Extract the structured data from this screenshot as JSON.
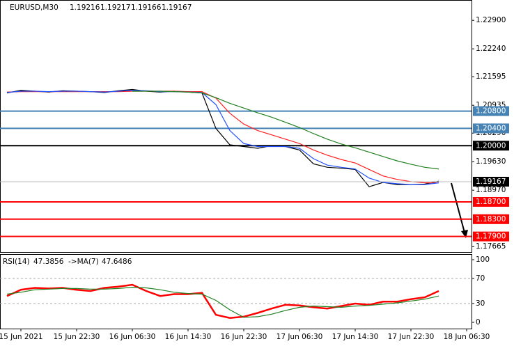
{
  "chart_data": [
    {
      "type": "line",
      "title": "EURUSD,M30",
      "ohlc": [
        1.19216,
        1.19217,
        1.19166,
        1.19167
      ],
      "categories": [
        null,
        "15 Jun 2021",
        null,
        null,
        null,
        "15 Jun 22:30",
        null,
        null,
        null,
        "16 Jun 06:30",
        null,
        null,
        null,
        "16 Jun 14:30",
        null,
        null,
        null,
        "16 Jun 22:30",
        null,
        null,
        null,
        "17 Jun 06:30",
        null,
        null,
        null,
        "17 Jun 14:30",
        null,
        null,
        null,
        "17 Jun 22:30",
        null,
        null,
        null,
        "18 Jun 06:30"
      ],
      "series": [
        {
          "color": "#000000",
          "values": [
            1.2122,
            1.2128,
            1.2126,
            1.2124,
            1.2127,
            1.2126,
            1.2125,
            1.2123,
            1.2127,
            1.213,
            1.2126,
            1.2124,
            1.2126,
            1.2124,
            1.2122,
            1.204,
            1.2002,
            1.1998,
            1.1994,
            1.2,
            1.1998,
            1.199,
            1.1958,
            1.195,
            1.1948,
            1.1945,
            1.1905,
            1.1915,
            1.191,
            1.191,
            1.1911,
            1.1918,
            null,
            null
          ]
        },
        {
          "color": "#ff2020",
          "values": [
            1.2124,
            1.2125,
            1.2125,
            1.2125,
            1.2125,
            1.2125,
            1.2125,
            1.2125,
            1.2125,
            1.2126,
            1.2126,
            1.2126,
            1.2126,
            1.2125,
            1.2125,
            1.211,
            1.2075,
            1.205,
            1.2035,
            1.2025,
            1.2015,
            1.2005,
            1.199,
            1.1978,
            1.1968,
            1.196,
            1.1945,
            1.193,
            1.1922,
            1.1917,
            1.1914,
            1.1914,
            null,
            null
          ]
        },
        {
          "color": "#2050ff",
          "values": [
            1.2123,
            1.2126,
            1.2126,
            1.2125,
            1.2126,
            1.2126,
            1.2125,
            1.2124,
            1.2126,
            1.2128,
            1.2127,
            1.2125,
            1.2125,
            1.2124,
            1.2123,
            1.2095,
            1.2035,
            1.2005,
            1.1998,
            1.1998,
            1.1998,
            1.1994,
            1.197,
            1.1955,
            1.195,
            1.1946,
            1.1925,
            1.1915,
            1.1912,
            1.191,
            1.191,
            1.1914,
            null,
            null
          ]
        },
        {
          "color": "#208020",
          "values": [
            null,
            null,
            null,
            null,
            null,
            null,
            null,
            null,
            null,
            1.2126,
            1.2126,
            1.2126,
            1.2125,
            1.2124,
            1.2122,
            1.2111,
            1.2098,
            1.2087,
            1.2076,
            1.2066,
            1.2054,
            1.2042,
            1.2028,
            1.2015,
            1.2004,
            1.1995,
            1.1985,
            1.1975,
            1.1965,
            1.1957,
            1.195,
            1.1946,
            null,
            null
          ]
        }
      ],
      "ylim": [
        1.1754,
        1.2337
      ],
      "yticks": [
        {
          "value": 1.229,
          "label": "1.22900"
        },
        {
          "value": 1.2224,
          "label": "1.22240"
        },
        {
          "value": 1.21595,
          "label": "1.21595"
        },
        {
          "value": 1.20935,
          "label": "1.20935"
        },
        {
          "value": 1.2029,
          "label": "1.20290"
        },
        {
          "value": 1.1963,
          "label": "1.19630"
        },
        {
          "value": 1.1897,
          "label": "1.18970"
        },
        {
          "value": 1.17665,
          "label": "1.17665"
        }
      ],
      "levels": [
        {
          "value": 1.208,
          "label": "1.20800",
          "color": "#4682b4"
        },
        {
          "value": 1.204,
          "label": "1.20400",
          "color": "#4682b4"
        },
        {
          "value": 1.2,
          "label": "1.20000",
          "color": "#000000"
        },
        {
          "value": 1.187,
          "label": "1.18700",
          "color": "#ff0000"
        },
        {
          "value": 1.183,
          "label": "1.18300",
          "color": "#ff0000"
        },
        {
          "value": 1.179,
          "label": "1.17900",
          "color": "#ff0000"
        }
      ],
      "last_price": 1.19167
    },
    {
      "type": "line",
      "title": "RSI(14)",
      "rsi": 47.3856,
      "ma_title": "->MA(7)",
      "ma": 47.6486,
      "series": [
        {
          "color": "#ff0000",
          "values": [
            42,
            52,
            55,
            54,
            55,
            52,
            50,
            55,
            57,
            60,
            50,
            42,
            45,
            45,
            47,
            12,
            7,
            9,
            15,
            22,
            28,
            27,
            24,
            22,
            26,
            30,
            28,
            33,
            33,
            37,
            40,
            50,
            null,
            null
          ]
        },
        {
          "color": "#208020",
          "values": [
            45,
            48,
            52,
            53,
            54,
            54,
            53,
            53,
            54,
            56,
            55,
            52,
            48,
            46,
            45,
            35,
            20,
            8,
            9,
            13,
            19,
            24,
            26,
            25,
            24,
            26,
            27,
            29,
            31,
            34,
            37,
            42,
            null,
            null
          ]
        }
      ],
      "ylim": [
        -10,
        107.8
      ],
      "yticks": [
        100,
        70,
        30,
        0
      ],
      "dashed_levels": [
        70,
        30
      ]
    }
  ]
}
